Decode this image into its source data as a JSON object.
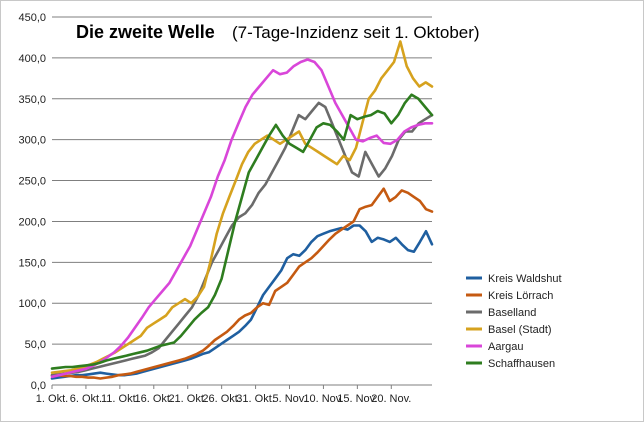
{
  "chart_data": {
    "type": "line",
    "title": "Die zweite Welle",
    "subtitle": "(7-Tage-Inzidenz seit 1. Oktober)",
    "xlabel": "",
    "ylabel": "",
    "ylim": [
      0,
      450
    ],
    "yticks": [
      "0,0",
      "50,0",
      "100,0",
      "150,0",
      "200,0",
      "250,0",
      "300,0",
      "350,0",
      "400,0",
      "450,0"
    ],
    "xticks": [
      "1. Okt.",
      "6. Okt.",
      "11. Okt.",
      "16. Okt.",
      "21. Okt.",
      "26. Okt.",
      "31. Okt.",
      "5. Nov.",
      "10. Nov.",
      "15. Nov.",
      "20. Nov."
    ],
    "xtick_days": [
      1,
      6,
      11,
      16,
      21,
      26,
      31,
      36,
      41,
      46,
      51
    ],
    "x_first_day": 1,
    "x_last_day": 57,
    "grid": "horizontal",
    "legend_position": "right",
    "series": [
      {
        "name": "Kreis Waldshut",
        "color": "#1f5fa0",
        "values": [
          8,
          9,
          10,
          11,
          12,
          12,
          13,
          14,
          15,
          14,
          13,
          12,
          12,
          13,
          14,
          16,
          18,
          20,
          22,
          24,
          26,
          28,
          30,
          32,
          35,
          38,
          40,
          45,
          50,
          55,
          60,
          65,
          72,
          80,
          95,
          110,
          120,
          130,
          140,
          155,
          160,
          158,
          165,
          175,
          182,
          185,
          188,
          190,
          192,
          190,
          195,
          195,
          188,
          175,
          180,
          178,
          175,
          180,
          172,
          165,
          163,
          175,
          188,
          172
        ]
      },
      {
        "name": "Kreis Lörrach",
        "color": "#c55a11",
        "values": [
          12,
          12,
          11,
          11,
          10,
          10,
          9,
          9,
          8,
          9,
          10,
          12,
          13,
          14,
          16,
          18,
          20,
          22,
          24,
          26,
          28,
          30,
          32,
          35,
          38,
          42,
          48,
          55,
          60,
          65,
          72,
          80,
          85,
          88,
          95,
          100,
          98,
          115,
          120,
          125,
          135,
          145,
          150,
          155,
          162,
          170,
          178,
          185,
          190,
          195,
          200,
          215,
          218,
          220,
          230,
          240,
          225,
          230,
          238,
          235,
          230,
          225,
          215,
          212
        ]
      },
      {
        "name": "Baselland",
        "color": "#6b6b6b",
        "values": [
          12,
          13,
          14,
          15,
          16,
          18,
          20,
          22,
          24,
          26,
          28,
          30,
          32,
          34,
          36,
          40,
          45,
          55,
          65,
          75,
          85,
          95,
          110,
          130,
          150,
          165,
          180,
          195,
          205,
          210,
          220,
          235,
          245,
          260,
          275,
          290,
          310,
          330,
          325,
          335,
          345,
          340,
          320,
          300,
          280,
          260,
          255,
          285,
          270,
          255,
          265,
          280,
          300,
          310,
          310,
          320,
          325,
          330
        ]
      },
      {
        "name": "Basel (Stadt)",
        "color": "#d6a21e",
        "values": [
          15,
          16,
          17,
          18,
          20,
          22,
          25,
          28,
          32,
          36,
          40,
          45,
          50,
          55,
          60,
          70,
          75,
          80,
          85,
          95,
          100,
          105,
          100,
          108,
          120,
          150,
          185,
          210,
          230,
          250,
          270,
          285,
          295,
          300,
          305,
          300,
          295,
          300,
          305,
          310,
          295,
          290,
          285,
          280,
          275,
          270,
          280,
          275,
          290,
          320,
          350,
          360,
          375,
          385,
          395,
          420,
          390,
          375,
          365,
          370,
          365
        ]
      },
      {
        "name": "Aargau",
        "color": "#d946d9",
        "values": [
          10,
          12,
          14,
          16,
          18,
          20,
          24,
          28,
          34,
          40,
          48,
          58,
          70,
          82,
          95,
          105,
          115,
          125,
          140,
          155,
          170,
          190,
          210,
          230,
          255,
          275,
          300,
          320,
          340,
          355,
          365,
          375,
          385,
          380,
          382,
          390,
          395,
          398,
          395,
          385,
          365,
          345,
          330,
          315,
          300,
          298,
          302,
          305,
          296,
          295,
          300,
          310,
          315,
          318,
          320,
          320
        ]
      },
      {
        "name": "Schaffhausen",
        "color": "#2e7d1f",
        "values": [
          20,
          21,
          22,
          22,
          23,
          24,
          25,
          27,
          30,
          32,
          34,
          36,
          38,
          40,
          42,
          45,
          48,
          50,
          52,
          60,
          70,
          80,
          88,
          95,
          110,
          130,
          165,
          200,
          230,
          260,
          275,
          290,
          305,
          318,
          305,
          295,
          290,
          285,
          300,
          315,
          320,
          318,
          310,
          300,
          330,
          325,
          328,
          330,
          335,
          332,
          320,
          330,
          345,
          355,
          350,
          340,
          330
        ]
      }
    ]
  }
}
